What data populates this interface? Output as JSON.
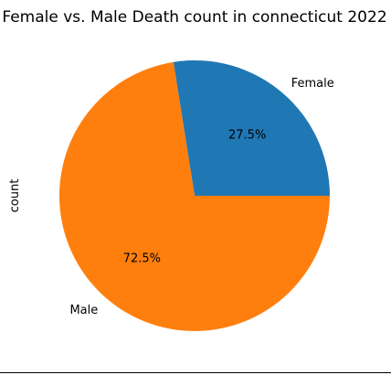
{
  "chart_data": {
    "type": "pie",
    "title": "Female vs. Male Death count in connecticut 2022",
    "ylabel": "count",
    "categories": [
      "Female",
      "Male"
    ],
    "values": [
      27.5,
      72.5
    ],
    "pct_labels": [
      "27.5%",
      "72.5%"
    ],
    "colors": [
      "#1f77b4",
      "#ff7f0e"
    ]
  }
}
